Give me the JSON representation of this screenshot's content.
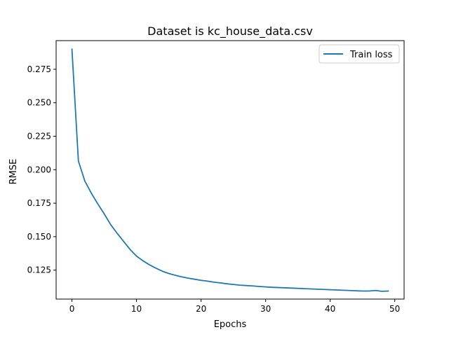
{
  "chart_data": {
    "type": "line",
    "title": "Dataset is kc_house_data.csv",
    "xlabel": "Epochs",
    "ylabel": "RMSE",
    "xlim": [
      -2.45,
      51.45
    ],
    "ylim": [
      0.1034,
      0.2964
    ],
    "x_ticks": [
      0,
      10,
      20,
      30,
      40,
      50
    ],
    "y_ticks": [
      0.125,
      0.15,
      0.175,
      0.2,
      0.225,
      0.25,
      0.275
    ],
    "x_tick_labels": [
      "0",
      "10",
      "20",
      "30",
      "40",
      "50"
    ],
    "y_tick_labels": [
      "0.125",
      "0.150",
      "0.175",
      "0.200",
      "0.225",
      "0.250",
      "0.275"
    ],
    "grid": false,
    "legend_position": "top-right",
    "series": [
      {
        "name": "Train loss",
        "color": "#1f77b4",
        "x": [
          0,
          1,
          2,
          3,
          4,
          5,
          6,
          7,
          8,
          9,
          10,
          11,
          12,
          13,
          14,
          15,
          16,
          17,
          18,
          19,
          20,
          21,
          22,
          23,
          24,
          25,
          26,
          27,
          28,
          29,
          30,
          31,
          32,
          33,
          34,
          35,
          36,
          37,
          38,
          39,
          40,
          41,
          42,
          43,
          44,
          45,
          46,
          47,
          48,
          49
        ],
        "values": [
          0.29,
          0.2065,
          0.1915,
          0.1825,
          0.1745,
          0.167,
          0.159,
          0.1525,
          0.1465,
          0.1405,
          0.1355,
          0.132,
          0.129,
          0.1265,
          0.1242,
          0.1225,
          0.1212,
          0.12,
          0.119,
          0.1182,
          0.1174,
          0.1168,
          0.116,
          0.1155,
          0.1148,
          0.1143,
          0.1138,
          0.1135,
          0.1132,
          0.1128,
          0.1125,
          0.1122,
          0.112,
          0.1118,
          0.1116,
          0.1114,
          0.1112,
          0.111,
          0.1108,
          0.1106,
          0.1104,
          0.1102,
          0.11,
          0.1098,
          0.1096,
          0.1094,
          0.1094,
          0.1098,
          0.1092,
          0.1094
        ]
      }
    ]
  }
}
